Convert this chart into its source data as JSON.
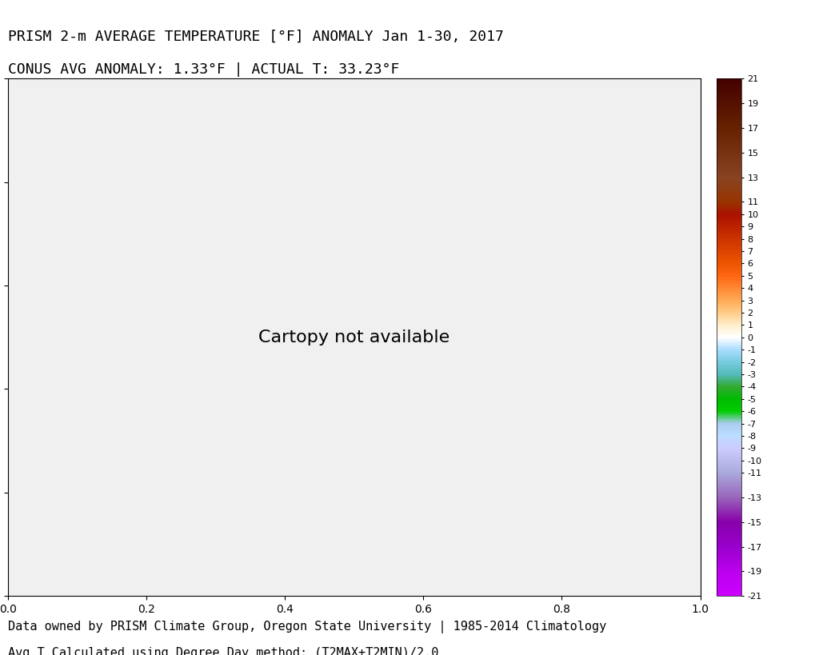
{
  "title_line1": "PRISM 2-m AVERAGE TEMPERATURE [°F] ANOMALY Jan 1-30, 2017",
  "title_line2": "CONUS AVG ANOMALY: 1.33°F | ACTUAL T: 33.23°F",
  "footer_line1": "Data owned by PRISM Climate Group, Oregon State University | 1985-2014 Climatology",
  "footer_line2": "Avg T Calculated using Degree Day method: (T2MAX+T2MIN)/2.0",
  "colorbar_ticks": [
    21,
    19,
    17,
    15,
    13,
    11,
    10,
    9,
    8,
    7,
    6,
    5,
    4,
    3,
    2,
    1,
    0,
    -1,
    -2,
    -3,
    -4,
    -5,
    -6,
    -7,
    -8,
    -9,
    -10,
    -11,
    -13,
    -15,
    -17,
    -19,
    -21
  ],
  "vmin": -21,
  "vmax": 21,
  "background_color": "#ffffff",
  "title_fontsize": 13,
  "footer_fontsize": 11,
  "colorbar_colors": [
    [
      21,
      "#8B0000"
    ],
    [
      19,
      "#A00000"
    ],
    [
      17,
      "#B80000"
    ],
    [
      15,
      "#CC1100"
    ],
    [
      13,
      "#8B3A3A"
    ],
    [
      11,
      "#7B4040"
    ],
    [
      10,
      "#6B3030"
    ],
    [
      9,
      "#CC3300"
    ],
    [
      8,
      "#DD4400"
    ],
    [
      7,
      "#EE5500"
    ],
    [
      6,
      "#FF6600"
    ],
    [
      5,
      "#FF7722"
    ],
    [
      4,
      "#FF8844"
    ],
    [
      3,
      "#FF9955"
    ],
    [
      2,
      "#FFBB88"
    ],
    [
      1,
      "#FFEECC"
    ],
    [
      0,
      "#FFFFFF"
    ],
    [
      -1,
      "#CCEEFF"
    ],
    [
      -2,
      "#AADDFF"
    ],
    [
      -3,
      "#88CCFF"
    ],
    [
      -4,
      "#44AA44"
    ],
    [
      -5,
      "#22AA22"
    ],
    [
      -6,
      "#00CC00"
    ],
    [
      -7,
      "#88BBAA"
    ],
    [
      -8,
      "#AACCCC"
    ],
    [
      -9,
      "#BBDDDD"
    ],
    [
      -10,
      "#CCBBCC"
    ],
    [
      -11,
      "#CCAACC"
    ],
    [
      -13,
      "#BB88BB"
    ],
    [
      -15,
      "#BB66BB"
    ],
    [
      -17,
      "#AA44AA"
    ],
    [
      -19,
      "#993399"
    ],
    [
      -21,
      "#882288"
    ]
  ]
}
